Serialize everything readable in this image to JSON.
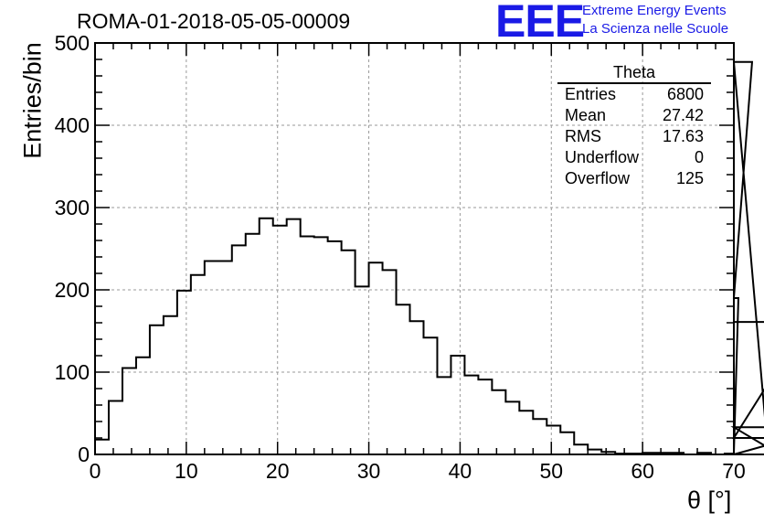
{
  "header": {
    "run_id": "ROMA-01-2018-05-05-00009",
    "logo_text": "EEE",
    "logo_line1": "Extreme Energy Events",
    "logo_line2": "La Scienza nelle Scuole",
    "logo_color": "#1a1ae6"
  },
  "stats_box": {
    "title": "Theta",
    "rows": [
      {
        "label": "Entries",
        "value": "6800"
      },
      {
        "label": "Mean",
        "value": "27.42"
      },
      {
        "label": "RMS",
        "value": "17.63"
      },
      {
        "label": "Underflow",
        "value": "0"
      },
      {
        "label": "Overflow",
        "value": "125"
      }
    ]
  },
  "chart_data": {
    "type": "bar",
    "histogram": true,
    "title": "ROMA-01-2018-05-05-00009",
    "xlabel": "θ [°]",
    "ylabel": "Entries/bin",
    "xlim": [
      0,
      70
    ],
    "ylim": [
      0,
      500
    ],
    "bin_width": 1.5,
    "grid": true,
    "x_ticks": [
      0,
      10,
      20,
      30,
      40,
      50,
      60,
      70
    ],
    "y_ticks": [
      0,
      100,
      200,
      300,
      400,
      500
    ],
    "line_color": "#000000",
    "values": [
      18,
      65,
      105,
      118,
      157,
      168,
      199,
      218,
      235,
      235,
      254,
      268,
      287,
      278,
      286,
      265,
      264,
      259,
      248,
      204,
      233,
      224,
      182,
      162,
      142,
      94,
      120,
      96,
      91,
      78,
      64,
      53,
      43,
      35,
      27,
      12,
      6,
      3,
      1,
      1,
      2,
      2,
      2,
      0,
      2,
      0,
      1,
      190,
      477,
      33,
      0,
      20,
      161
    ]
  }
}
